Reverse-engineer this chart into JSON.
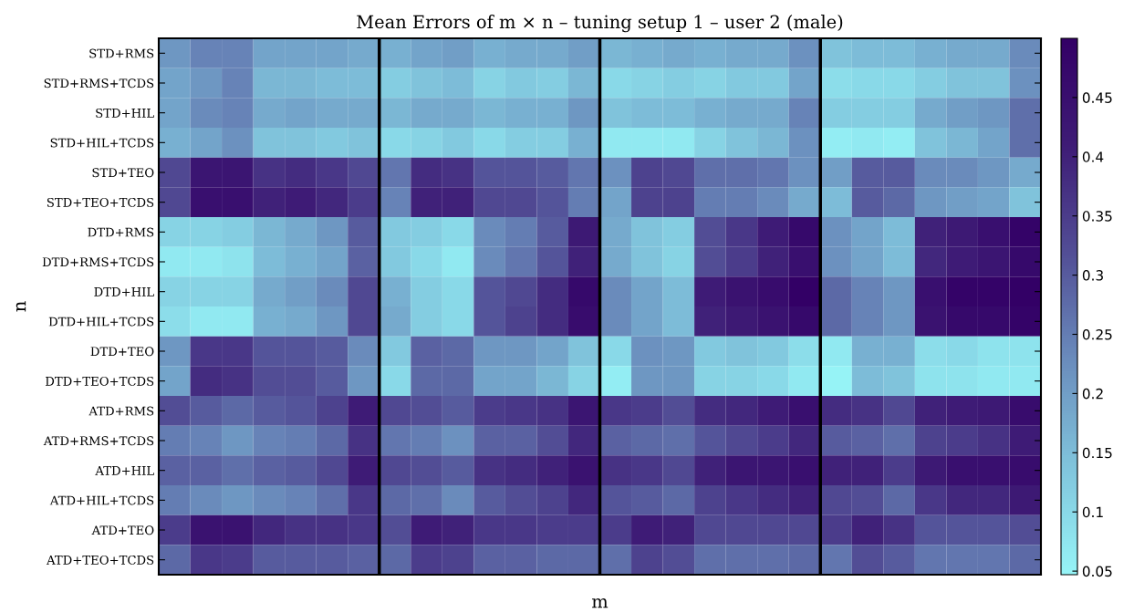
{
  "chart_data": {
    "type": "heatmap",
    "title": "Mean Errors of m × n – tuning setup 1 – user 2 (male)",
    "xlabel": "m",
    "ylabel": "n",
    "clabel": null,
    "categories": [
      null,
      null,
      null,
      null,
      null,
      null,
      null,
      null,
      null,
      null,
      null,
      null,
      null,
      null,
      null,
      null,
      null,
      null,
      null,
      null,
      null,
      null,
      null,
      null,
      null,
      null,
      null,
      null
    ],
    "y_categories": [
      "STD+RMS",
      "STD+RMS+TCDS",
      "STD+HIL",
      "STD+HIL+TCDS",
      "STD+TEO",
      "STD+TEO+TCDS",
      "DTD+RMS",
      "DTD+RMS+TCDS",
      "DTD+HIL",
      "DTD+HIL+TCDS",
      "DTD+TEO",
      "DTD+TEO+TCDS",
      "ATD+RMS",
      "ATD+RMS+TCDS",
      "ATD+HIL",
      "ATD+HIL+TCDS",
      "ATD+TEO",
      "ATD+TEO+TCDS"
    ],
    "cells": [
      [
        0.21,
        0.24,
        0.24,
        0.19,
        0.19,
        0.19,
        0.18,
        0.17,
        0.19,
        0.2,
        0.17,
        0.18,
        0.18,
        0.2,
        0.16,
        0.17,
        0.18,
        0.17,
        0.18,
        0.18,
        0.22,
        0.14,
        0.15,
        0.15,
        0.17,
        0.18,
        0.18,
        0.23
      ],
      [
        0.19,
        0.21,
        0.24,
        0.16,
        0.16,
        0.15,
        0.15,
        0.12,
        0.14,
        0.15,
        0.11,
        0.13,
        0.12,
        0.16,
        0.1,
        0.11,
        0.12,
        0.11,
        0.13,
        0.13,
        0.19,
        0.09,
        0.1,
        0.1,
        0.12,
        0.14,
        0.14,
        0.22
      ],
      [
        0.19,
        0.23,
        0.24,
        0.18,
        0.19,
        0.18,
        0.18,
        0.16,
        0.18,
        0.18,
        0.16,
        0.17,
        0.17,
        0.21,
        0.14,
        0.15,
        0.15,
        0.17,
        0.18,
        0.18,
        0.24,
        0.12,
        0.12,
        0.12,
        0.18,
        0.2,
        0.21,
        0.27
      ],
      [
        0.17,
        0.19,
        0.22,
        0.14,
        0.14,
        0.13,
        0.14,
        0.1,
        0.11,
        0.13,
        0.1,
        0.12,
        0.12,
        0.17,
        0.07,
        0.07,
        0.07,
        0.11,
        0.14,
        0.16,
        0.22,
        0.06,
        0.07,
        0.06,
        0.14,
        0.16,
        0.19,
        0.27
      ],
      [
        0.33,
        0.43,
        0.43,
        0.37,
        0.38,
        0.36,
        0.33,
        0.26,
        0.38,
        0.37,
        0.31,
        0.31,
        0.3,
        0.26,
        0.22,
        0.34,
        0.33,
        0.27,
        0.27,
        0.26,
        0.22,
        0.2,
        0.3,
        0.3,
        0.23,
        0.23,
        0.21,
        0.18
      ],
      [
        0.33,
        0.45,
        0.45,
        0.4,
        0.41,
        0.39,
        0.35,
        0.24,
        0.4,
        0.4,
        0.33,
        0.33,
        0.31,
        0.25,
        0.19,
        0.34,
        0.34,
        0.25,
        0.25,
        0.23,
        0.18,
        0.15,
        0.3,
        0.28,
        0.21,
        0.2,
        0.19,
        0.14
      ],
      [
        0.11,
        0.11,
        0.12,
        0.16,
        0.18,
        0.21,
        0.3,
        0.13,
        0.12,
        0.1,
        0.23,
        0.25,
        0.3,
        0.42,
        0.18,
        0.14,
        0.12,
        0.32,
        0.36,
        0.41,
        0.47,
        0.22,
        0.19,
        0.15,
        0.4,
        0.42,
        0.45,
        0.49
      ],
      [
        0.07,
        0.07,
        0.08,
        0.15,
        0.17,
        0.19,
        0.29,
        0.13,
        0.1,
        0.07,
        0.23,
        0.26,
        0.31,
        0.4,
        0.18,
        0.14,
        0.11,
        0.32,
        0.35,
        0.4,
        0.45,
        0.22,
        0.19,
        0.15,
        0.39,
        0.41,
        0.43,
        0.47
      ],
      [
        0.11,
        0.11,
        0.11,
        0.18,
        0.2,
        0.23,
        0.33,
        0.17,
        0.12,
        0.1,
        0.31,
        0.33,
        0.38,
        0.47,
        0.23,
        0.19,
        0.15,
        0.41,
        0.44,
        0.46,
        0.5,
        0.28,
        0.24,
        0.21,
        0.45,
        0.49,
        0.49,
        0.5
      ],
      [
        0.09,
        0.07,
        0.07,
        0.17,
        0.18,
        0.21,
        0.33,
        0.18,
        0.12,
        0.1,
        0.31,
        0.34,
        0.38,
        0.46,
        0.23,
        0.19,
        0.15,
        0.4,
        0.42,
        0.44,
        0.47,
        0.28,
        0.24,
        0.21,
        0.44,
        0.47,
        0.47,
        0.49
      ],
      [
        0.21,
        0.36,
        0.36,
        0.31,
        0.31,
        0.3,
        0.23,
        0.13,
        0.29,
        0.28,
        0.21,
        0.21,
        0.19,
        0.14,
        0.1,
        0.22,
        0.21,
        0.13,
        0.14,
        0.13,
        0.09,
        0.07,
        0.17,
        0.17,
        0.09,
        0.1,
        0.08,
        0.08
      ],
      [
        0.19,
        0.38,
        0.37,
        0.32,
        0.32,
        0.3,
        0.21,
        0.1,
        0.28,
        0.28,
        0.19,
        0.19,
        0.16,
        0.11,
        0.06,
        0.21,
        0.21,
        0.11,
        0.11,
        0.1,
        0.07,
        0.05,
        0.15,
        0.14,
        0.08,
        0.08,
        0.07,
        0.07
      ],
      [
        0.32,
        0.3,
        0.28,
        0.3,
        0.31,
        0.34,
        0.41,
        0.33,
        0.32,
        0.3,
        0.35,
        0.36,
        0.37,
        0.43,
        0.36,
        0.35,
        0.32,
        0.38,
        0.39,
        0.41,
        0.45,
        0.38,
        0.37,
        0.33,
        0.4,
        0.41,
        0.42,
        0.46
      ],
      [
        0.25,
        0.24,
        0.21,
        0.24,
        0.25,
        0.28,
        0.37,
        0.26,
        0.25,
        0.22,
        0.29,
        0.29,
        0.32,
        0.39,
        0.29,
        0.28,
        0.27,
        0.31,
        0.33,
        0.35,
        0.39,
        0.3,
        0.29,
        0.27,
        0.34,
        0.35,
        0.37,
        0.41
      ],
      [
        0.29,
        0.29,
        0.27,
        0.29,
        0.3,
        0.33,
        0.41,
        0.33,
        0.32,
        0.3,
        0.37,
        0.38,
        0.4,
        0.44,
        0.37,
        0.36,
        0.33,
        0.4,
        0.43,
        0.43,
        0.45,
        0.4,
        0.4,
        0.35,
        0.42,
        0.45,
        0.45,
        0.46
      ],
      [
        0.25,
        0.23,
        0.21,
        0.23,
        0.24,
        0.27,
        0.36,
        0.28,
        0.27,
        0.23,
        0.3,
        0.32,
        0.34,
        0.39,
        0.31,
        0.3,
        0.28,
        0.34,
        0.36,
        0.38,
        0.4,
        0.33,
        0.32,
        0.28,
        0.36,
        0.39,
        0.39,
        0.42
      ],
      [
        0.35,
        0.44,
        0.44,
        0.39,
        0.37,
        0.37,
        0.36,
        0.32,
        0.41,
        0.4,
        0.36,
        0.36,
        0.35,
        0.35,
        0.35,
        0.41,
        0.4,
        0.33,
        0.33,
        0.33,
        0.33,
        0.35,
        0.4,
        0.37,
        0.31,
        0.31,
        0.31,
        0.32
      ],
      [
        0.28,
        0.36,
        0.35,
        0.3,
        0.3,
        0.3,
        0.29,
        0.28,
        0.35,
        0.34,
        0.29,
        0.29,
        0.28,
        0.28,
        0.27,
        0.34,
        0.32,
        0.27,
        0.27,
        0.27,
        0.28,
        0.26,
        0.32,
        0.3,
        0.26,
        0.26,
        0.26,
        0.28
      ]
    ],
    "clim": [
      0.047,
      0.5
    ],
    "cticks": [
      0.05,
      0.1,
      0.15,
      0.2,
      0.25,
      0.3,
      0.35,
      0.4,
      0.45
    ],
    "grid": false,
    "tick_labels": "y"
  }
}
